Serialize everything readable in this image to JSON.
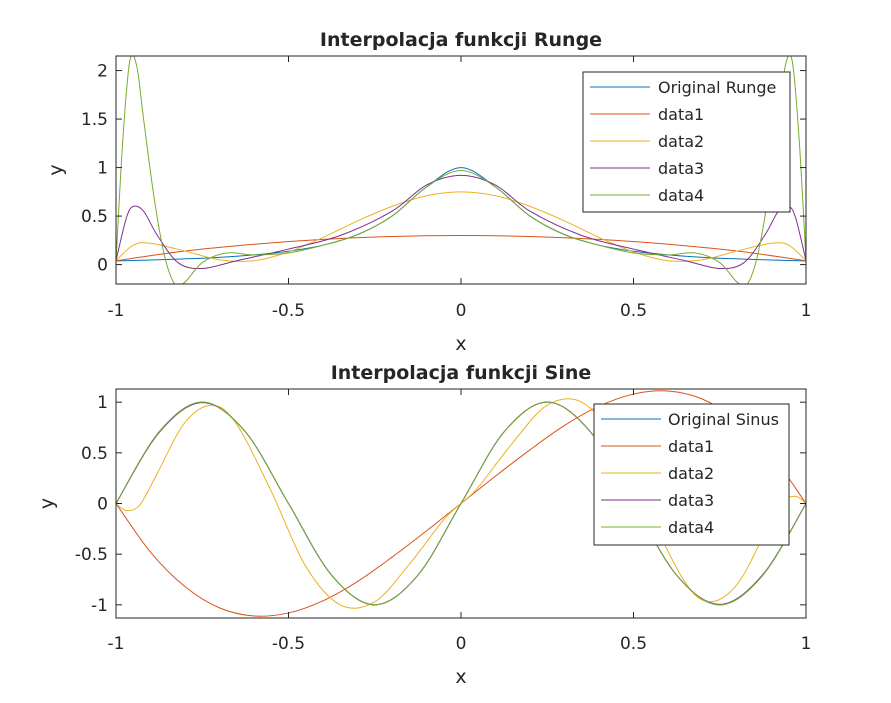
{
  "chart_data": [
    {
      "type": "line",
      "title": "Interpolacja funkcji Runge",
      "xlabel": "x",
      "ylabel": "y",
      "xlim": [
        -1,
        1
      ],
      "ylim": [
        -0.2,
        2.15
      ],
      "xticks": [
        "-1",
        "-0.5",
        "0",
        "0.5",
        "1"
      ],
      "yticks": [
        "0",
        "0.5",
        "1",
        "1.5",
        "2"
      ],
      "grid": false,
      "legend_position": "top-right",
      "series": [
        {
          "name": "Original Runge",
          "color": "#0072BD",
          "x": [
            -1,
            -0.9,
            -0.8,
            -0.7,
            -0.6,
            -0.5,
            -0.4,
            -0.3,
            -0.2,
            -0.1,
            0,
            0.1,
            0.2,
            0.3,
            0.4,
            0.5,
            0.6,
            0.7,
            0.8,
            0.9,
            1
          ],
          "y": [
            0.038,
            0.047,
            0.059,
            0.075,
            0.1,
            0.138,
            0.2,
            0.308,
            0.5,
            0.8,
            1.0,
            0.8,
            0.5,
            0.308,
            0.2,
            0.138,
            0.1,
            0.075,
            0.059,
            0.047,
            0.038
          ]
        },
        {
          "name": "data1",
          "color": "#D95319",
          "x": [
            -1,
            -0.8,
            -0.6,
            -0.4,
            -0.2,
            0,
            0.2,
            0.4,
            0.6,
            0.8,
            1
          ],
          "y": [
            0.04,
            0.14,
            0.21,
            0.26,
            0.29,
            0.3,
            0.29,
            0.26,
            0.21,
            0.14,
            0.04
          ]
        },
        {
          "name": "data2",
          "color": "#EDB120",
          "x": [
            -1,
            -0.95,
            -0.9,
            -0.8,
            -0.7,
            -0.6,
            -0.5,
            -0.4,
            -0.3,
            -0.2,
            -0.1,
            0,
            0.1,
            0.2,
            0.3,
            0.4,
            0.5,
            0.6,
            0.7,
            0.8,
            0.9,
            0.95,
            1
          ],
          "y": [
            0.04,
            0.2,
            0.22,
            0.14,
            0.05,
            0.04,
            0.13,
            0.28,
            0.45,
            0.6,
            0.71,
            0.75,
            0.71,
            0.6,
            0.45,
            0.28,
            0.13,
            0.04,
            0.05,
            0.14,
            0.22,
            0.2,
            0.04
          ]
        },
        {
          "name": "data3",
          "color": "#7E2F8E",
          "x": [
            -1,
            -0.97,
            -0.95,
            -0.92,
            -0.88,
            -0.82,
            -0.75,
            -0.65,
            -0.5,
            -0.35,
            -0.2,
            -0.1,
            0,
            0.1,
            0.2,
            0.35,
            0.5,
            0.65,
            0.75,
            0.82,
            0.88,
            0.92,
            0.95,
            0.97,
            1
          ],
          "y": [
            0.04,
            0.48,
            0.6,
            0.55,
            0.3,
            0.02,
            -0.04,
            0.04,
            0.16,
            0.3,
            0.55,
            0.82,
            0.92,
            0.82,
            0.55,
            0.3,
            0.16,
            0.04,
            -0.04,
            0.02,
            0.3,
            0.55,
            0.6,
            0.48,
            0.04
          ]
        },
        {
          "name": "data4",
          "color": "#77AC30",
          "x": [
            -1,
            -0.98,
            -0.96,
            -0.94,
            -0.92,
            -0.89,
            -0.86,
            -0.83,
            -0.8,
            -0.75,
            -0.68,
            -0.6,
            -0.5,
            -0.4,
            -0.3,
            -0.2,
            -0.1,
            0,
            0.1,
            0.2,
            0.3,
            0.4,
            0.5,
            0.6,
            0.68,
            0.75,
            0.8,
            0.83,
            0.86,
            0.89,
            0.92,
            0.94,
            0.96,
            0.98,
            1
          ],
          "y": [
            0.04,
            1.3,
            2.1,
            2.05,
            1.5,
            0.7,
            0.1,
            -0.2,
            -0.18,
            0.02,
            0.12,
            0.1,
            0.12,
            0.2,
            0.31,
            0.5,
            0.8,
            0.97,
            0.8,
            0.5,
            0.31,
            0.2,
            0.12,
            0.1,
            0.12,
            0.02,
            -0.18,
            -0.2,
            0.1,
            0.7,
            1.5,
            2.05,
            2.1,
            1.3,
            0.04
          ]
        }
      ]
    },
    {
      "type": "line",
      "title": "Interpolacja funkcji Sine",
      "xlabel": "x",
      "ylabel": "y",
      "xlim": [
        -1,
        1
      ],
      "ylim": [
        -1.13,
        1.13
      ],
      "xticks": [
        "-1",
        "-0.5",
        "0",
        "0.5",
        "1"
      ],
      "yticks": [
        "-1",
        "-0.5",
        "0",
        "0.5",
        "1"
      ],
      "grid": false,
      "legend_position": "top-right",
      "series": [
        {
          "name": "Original Sinus",
          "color": "#0072BD",
          "x": [
            -1,
            -0.875,
            -0.75,
            -0.625,
            -0.5,
            -0.375,
            -0.25,
            -0.125,
            0,
            0.125,
            0.25,
            0.375,
            0.5,
            0.625,
            0.75,
            0.875,
            1
          ],
          "y": [
            0,
            0.707,
            1,
            0.707,
            0,
            -0.707,
            -1,
            -0.707,
            0,
            0.707,
            1,
            0.707,
            0,
            -0.707,
            -1,
            -0.707,
            0
          ]
        },
        {
          "name": "data1",
          "color": "#D95319",
          "x": [
            -1,
            -0.9,
            -0.8,
            -0.7,
            -0.6,
            -0.5,
            -0.4,
            -0.3,
            -0.2,
            -0.1,
            0,
            0.1,
            0.2,
            0.3,
            0.4,
            0.5,
            0.6,
            0.7,
            0.8,
            0.9,
            1
          ],
          "y": [
            0,
            -0.48,
            -0.82,
            -1.03,
            -1.11,
            -1.08,
            -0.96,
            -0.77,
            -0.53,
            -0.27,
            0,
            0.27,
            0.53,
            0.77,
            0.96,
            1.08,
            1.11,
            1.03,
            0.82,
            0.48,
            0
          ]
        },
        {
          "name": "data2",
          "color": "#EDB120",
          "x": [
            -1,
            -0.97,
            -0.93,
            -0.88,
            -0.8,
            -0.72,
            -0.65,
            -0.55,
            -0.45,
            -0.35,
            -0.25,
            -0.15,
            -0.05,
            0,
            0.05,
            0.15,
            0.25,
            0.35,
            0.45,
            0.55,
            0.65,
            0.72,
            0.8,
            0.88,
            0.93,
            0.97,
            1
          ],
          "y": [
            0,
            -0.07,
            -0.01,
            0.3,
            0.8,
            0.97,
            0.78,
            0.12,
            -0.62,
            -1.0,
            -0.97,
            -0.6,
            -0.16,
            0,
            0.16,
            0.6,
            0.97,
            1.0,
            0.62,
            -0.12,
            -0.78,
            -0.97,
            -0.8,
            -0.3,
            0.01,
            0.07,
            0
          ]
        },
        {
          "name": "data3",
          "color": "#7E2F8E",
          "x": [
            -1,
            -0.875,
            -0.75,
            -0.625,
            -0.5,
            -0.375,
            -0.25,
            -0.125,
            0,
            0.125,
            0.25,
            0.375,
            0.5,
            0.625,
            0.75,
            0.875,
            1
          ],
          "y": [
            0,
            0.7,
            0.995,
            0.707,
            0,
            -0.707,
            -1,
            -0.707,
            0,
            0.707,
            1,
            0.707,
            0,
            -0.707,
            -0.995,
            -0.7,
            0
          ]
        },
        {
          "name": "data4",
          "color": "#77AC30",
          "x": [
            -1,
            -0.875,
            -0.75,
            -0.625,
            -0.5,
            -0.375,
            -0.25,
            -0.125,
            0,
            0.125,
            0.25,
            0.375,
            0.5,
            0.625,
            0.75,
            0.875,
            1
          ],
          "y": [
            0,
            0.707,
            1,
            0.707,
            0,
            -0.707,
            -1,
            -0.707,
            0,
            0.707,
            1,
            0.707,
            0,
            -0.707,
            -1,
            -0.707,
            0
          ]
        }
      ]
    }
  ]
}
